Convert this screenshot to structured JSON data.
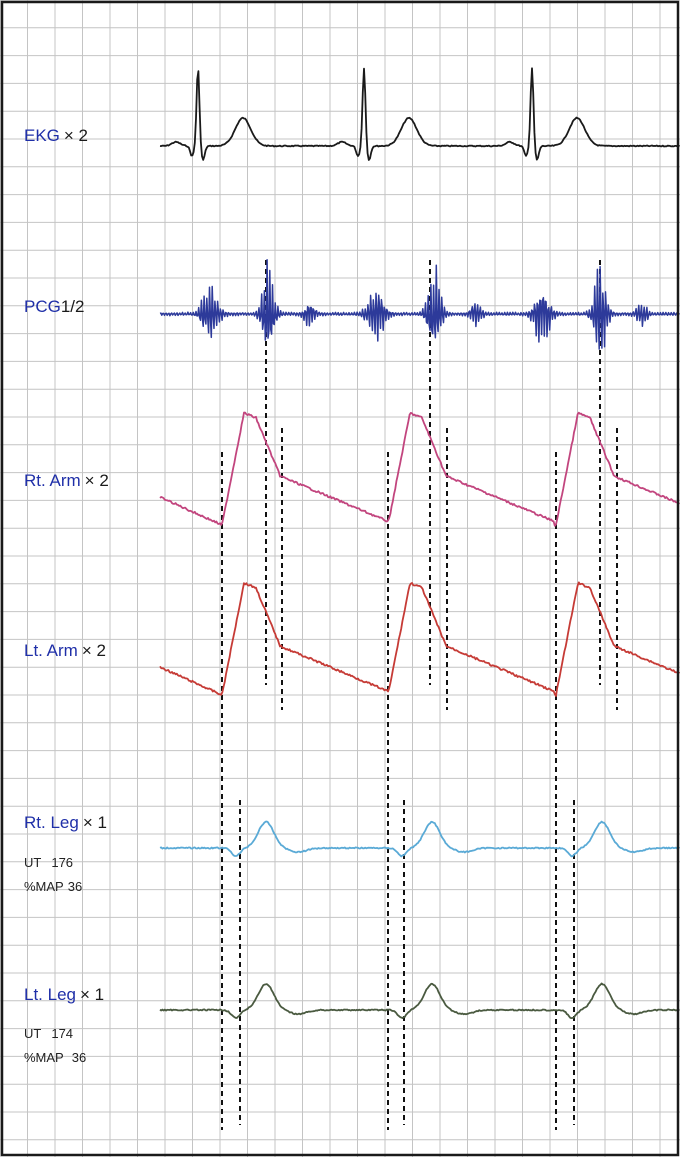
{
  "chart_data": {
    "type": "line",
    "title": "",
    "xlabel": "",
    "ylabel": "",
    "grid": true,
    "colors": {
      "background": "#ffffff",
      "grid": "#c4c4c4",
      "border": "#1a1a1a",
      "label": "#1f2fa8",
      "gain": "#1a1a1a",
      "markers": "#111111"
    },
    "series": [
      {
        "name": "EKG",
        "gain": "× 2",
        "color": "#1a1a1a",
        "wave": "ekg",
        "beats": 3
      },
      {
        "name": "PCG",
        "gain": "1/2",
        "color": "#2d3a9a",
        "wave": "pcg",
        "beats": 3
      },
      {
        "name": "Rt. Arm",
        "gain": "× 2",
        "color": "#c2457e",
        "wave": "arm",
        "beats": 3
      },
      {
        "name": "Lt. Arm",
        "gain": "× 2",
        "color": "#c63b36",
        "wave": "arm",
        "beats": 3
      },
      {
        "name": "Rt. Leg",
        "gain": "× 1",
        "color": "#5aaad6",
        "wave": "leg",
        "beats": 3,
        "annotations": [
          {
            "label": "UT",
            "value": "176"
          },
          {
            "label": "%MAP",
            "value": "36"
          }
        ]
      },
      {
        "name": "Lt. Leg",
        "gain": "× 1",
        "color": "#4a5a40",
        "wave": "leg",
        "beats": 3,
        "annotations": [
          {
            "label": "UT",
            "value": "174"
          },
          {
            "label": "%MAP",
            "value": "36"
          }
        ]
      }
    ],
    "annotations": [
      {
        "text": "UT 176",
        "series": "Rt. Leg"
      },
      {
        "text": "%MAP 36",
        "series": "Rt. Leg"
      },
      {
        "text": "UT 174",
        "series": "Lt. Leg"
      },
      {
        "text": "%MAP 36",
        "series": "Lt. Leg"
      }
    ]
  }
}
